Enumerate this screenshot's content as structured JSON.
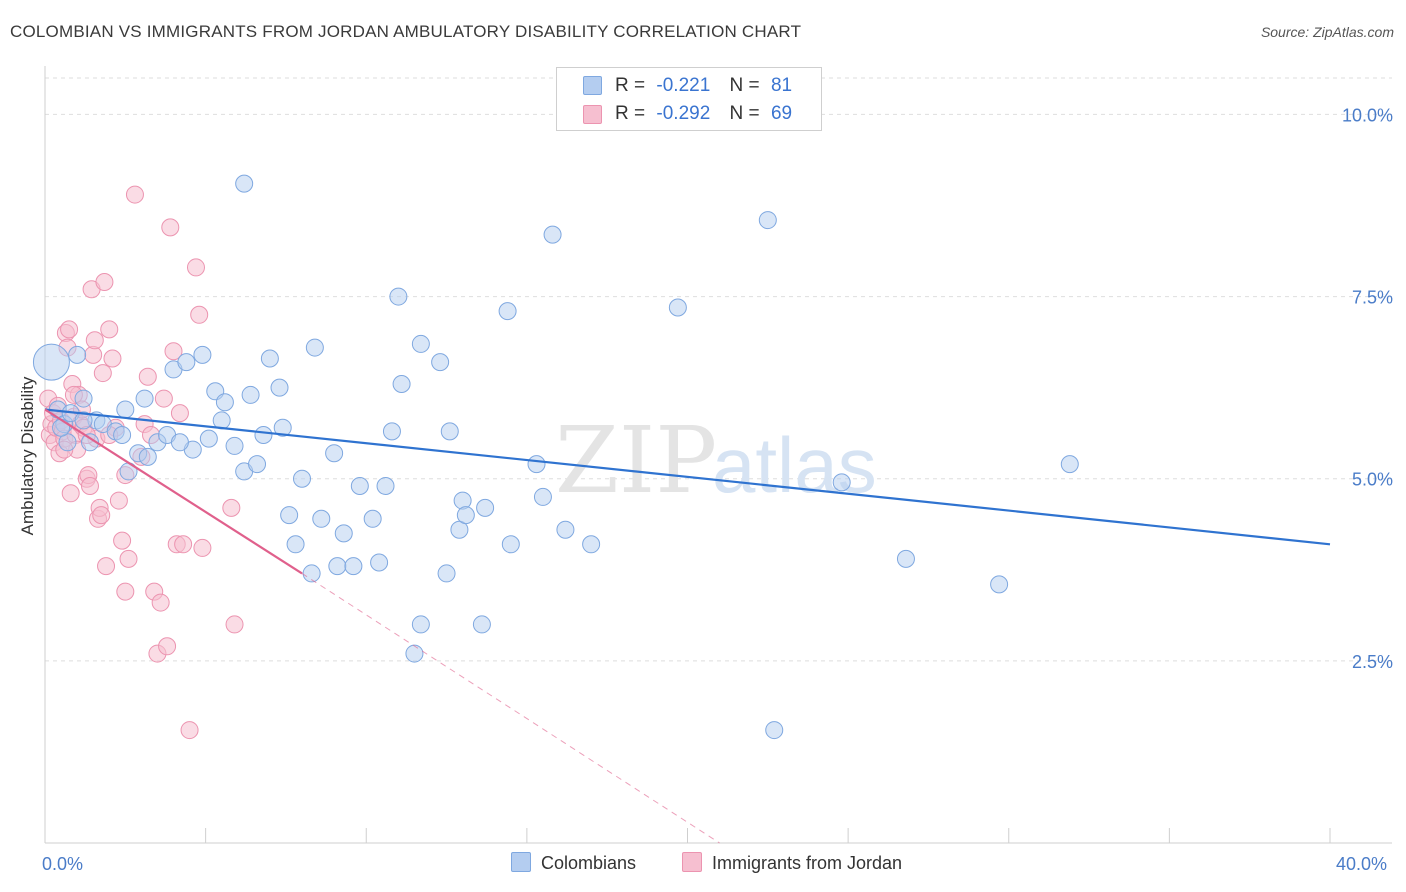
{
  "header": {
    "title": "COLOMBIAN VS IMMIGRANTS FROM JORDAN AMBULATORY DISABILITY CORRELATION CHART",
    "source": "Source: ZipAtlas.com"
  },
  "watermark": {
    "zip": "ZIP",
    "atlas": "atlas"
  },
  "legend": {
    "series1": {
      "r_label": "R =",
      "r_value": "-0.221",
      "n_label": "N =",
      "n_value": "81"
    },
    "series2": {
      "r_label": "R =",
      "r_value": "-0.292",
      "n_label": "N =",
      "n_value": "69"
    }
  },
  "bottom_legend": {
    "series1": "Colombians",
    "series2": "Immigrants from Jordan"
  },
  "colors": {
    "blue_fill": "#b4cdf0",
    "blue_stroke": "#7fa8e0",
    "blue_line": "#2f73d0",
    "pink_fill": "#f6bfd0",
    "pink_stroke": "#ec94b0",
    "pink_line": "#e0608c",
    "tick_text": "#4a7cc8",
    "grid": "#dedede"
  },
  "chart_data": {
    "type": "scatter",
    "title": "COLOMBIAN VS IMMIGRANTS FROM JORDAN AMBULATORY DISABILITY CORRELATION CHART",
    "xlabel": "",
    "ylabel": "Ambulatory Disability",
    "xlim": [
      0,
      40
    ],
    "ylim": [
      0,
      10.5
    ],
    "x_tick_labels": [
      "0.0%",
      "40.0%"
    ],
    "y_ticks": [
      2.5,
      5.0,
      7.5,
      10.0
    ],
    "y_tick_labels": [
      "2.5%",
      "5.0%",
      "7.5%",
      "10.0%"
    ],
    "grid": true,
    "series": [
      {
        "name": "Colombians",
        "r": -0.221,
        "n": 81,
        "trend": {
          "x": [
            0,
            40
          ],
          "y": [
            5.95,
            4.1
          ]
        },
        "points": [
          [
            0.2,
            6.6
          ],
          [
            0.4,
            5.95
          ],
          [
            0.6,
            5.75
          ],
          [
            0.8,
            5.9
          ],
          [
            1.0,
            6.7
          ],
          [
            1.2,
            6.1
          ],
          [
            0.7,
            5.5
          ],
          [
            1.6,
            5.8
          ],
          [
            1.8,
            5.75
          ],
          [
            2.2,
            5.65
          ],
          [
            2.5,
            5.95
          ],
          [
            2.6,
            5.1
          ],
          [
            2.9,
            5.35
          ],
          [
            3.1,
            6.1
          ],
          [
            3.2,
            5.3
          ],
          [
            3.5,
            5.5
          ],
          [
            3.8,
            5.6
          ],
          [
            4.0,
            6.5
          ],
          [
            4.4,
            6.6
          ],
          [
            4.6,
            5.4
          ],
          [
            4.9,
            6.7
          ],
          [
            5.1,
            5.55
          ],
          [
            5.3,
            6.2
          ],
          [
            5.5,
            5.8
          ],
          [
            5.6,
            6.05
          ],
          [
            5.9,
            5.45
          ],
          [
            6.2,
            9.05
          ],
          [
            6.2,
            5.1
          ],
          [
            6.4,
            6.15
          ],
          [
            6.6,
            5.2
          ],
          [
            6.8,
            5.6
          ],
          [
            7.0,
            6.65
          ],
          [
            7.3,
            6.25
          ],
          [
            7.4,
            5.7
          ],
          [
            7.6,
            4.5
          ],
          [
            7.8,
            4.1
          ],
          [
            8.0,
            5.0
          ],
          [
            8.3,
            3.7
          ],
          [
            8.4,
            6.8
          ],
          [
            8.6,
            4.45
          ],
          [
            9.0,
            5.35
          ],
          [
            9.1,
            3.8
          ],
          [
            9.3,
            4.25
          ],
          [
            9.6,
            3.8
          ],
          [
            9.8,
            4.9
          ],
          [
            10.2,
            4.45
          ],
          [
            10.4,
            3.85
          ],
          [
            10.6,
            4.9
          ],
          [
            10.8,
            5.65
          ],
          [
            11.0,
            7.5
          ],
          [
            11.1,
            6.3
          ],
          [
            11.7,
            6.85
          ],
          [
            11.7,
            3.0
          ],
          [
            11.5,
            2.6
          ],
          [
            12.3,
            6.6
          ],
          [
            12.5,
            3.7
          ],
          [
            12.6,
            5.65
          ],
          [
            12.9,
            4.3
          ],
          [
            13.0,
            4.7
          ],
          [
            13.1,
            4.5
          ],
          [
            13.6,
            3.0
          ],
          [
            13.7,
            4.6
          ],
          [
            14.4,
            7.3
          ],
          [
            14.5,
            4.1
          ],
          [
            15.3,
            5.2
          ],
          [
            15.5,
            4.75
          ],
          [
            15.8,
            8.35
          ],
          [
            16.2,
            4.3
          ],
          [
            17.0,
            4.1
          ],
          [
            19.7,
            7.35
          ],
          [
            22.5,
            8.55
          ],
          [
            22.7,
            1.55
          ],
          [
            24.8,
            4.95
          ],
          [
            26.8,
            3.9
          ],
          [
            29.7,
            3.55
          ],
          [
            31.9,
            5.2
          ],
          [
            1.2,
            5.8
          ],
          [
            2.4,
            5.6
          ],
          [
            0.5,
            5.7
          ],
          [
            1.4,
            5.5
          ],
          [
            4.2,
            5.5
          ]
        ]
      },
      {
        "name": "Immigrants from Jordan",
        "r": -0.292,
        "n": 69,
        "trend": {
          "x": [
            0,
            8.0
          ],
          "y": [
            5.95,
            3.7
          ]
        },
        "trend_extension": {
          "x": [
            8.0,
            21.0
          ],
          "y": [
            3.7,
            0.0
          ]
        },
        "points": [
          [
            0.1,
            6.1
          ],
          [
            0.15,
            5.6
          ],
          [
            0.2,
            5.75
          ],
          [
            0.25,
            5.9
          ],
          [
            0.3,
            5.5
          ],
          [
            0.35,
            5.7
          ],
          [
            0.4,
            6.0
          ],
          [
            0.45,
            5.35
          ],
          [
            0.5,
            5.8
          ],
          [
            0.55,
            5.65
          ],
          [
            0.6,
            5.55
          ],
          [
            0.65,
            7.0
          ],
          [
            0.7,
            6.8
          ],
          [
            0.75,
            7.05
          ],
          [
            0.8,
            4.8
          ],
          [
            0.85,
            6.3
          ],
          [
            0.9,
            5.85
          ],
          [
            0.95,
            5.6
          ],
          [
            1.0,
            5.4
          ],
          [
            1.05,
            6.15
          ],
          [
            1.1,
            5.75
          ],
          [
            1.15,
            5.95
          ],
          [
            1.2,
            5.7
          ],
          [
            1.3,
            5.0
          ],
          [
            1.35,
            5.05
          ],
          [
            1.4,
            4.9
          ],
          [
            1.45,
            7.6
          ],
          [
            1.5,
            6.7
          ],
          [
            1.55,
            6.9
          ],
          [
            1.6,
            5.55
          ],
          [
            1.65,
            4.45
          ],
          [
            1.7,
            4.6
          ],
          [
            1.75,
            4.5
          ],
          [
            1.8,
            6.45
          ],
          [
            1.85,
            7.7
          ],
          [
            1.9,
            3.8
          ],
          [
            2.0,
            7.05
          ],
          [
            2.1,
            6.65
          ],
          [
            2.2,
            5.7
          ],
          [
            2.3,
            4.7
          ],
          [
            2.4,
            4.15
          ],
          [
            2.5,
            5.05
          ],
          [
            2.5,
            3.45
          ],
          [
            2.6,
            3.9
          ],
          [
            2.8,
            8.9
          ],
          [
            3.1,
            5.75
          ],
          [
            3.2,
            6.4
          ],
          [
            3.3,
            5.6
          ],
          [
            3.4,
            3.45
          ],
          [
            3.5,
            2.6
          ],
          [
            3.6,
            3.3
          ],
          [
            3.7,
            6.1
          ],
          [
            3.8,
            2.7
          ],
          [
            3.9,
            8.45
          ],
          [
            4.0,
            6.75
          ],
          [
            4.1,
            4.1
          ],
          [
            4.2,
            5.9
          ],
          [
            4.3,
            4.1
          ],
          [
            4.5,
            1.55
          ],
          [
            4.7,
            7.9
          ],
          [
            4.8,
            7.25
          ],
          [
            4.9,
            4.05
          ],
          [
            5.8,
            4.6
          ],
          [
            5.9,
            3.0
          ],
          [
            1.3,
            5.6
          ],
          [
            0.9,
            6.15
          ],
          [
            2.0,
            5.6
          ],
          [
            3.0,
            5.3
          ],
          [
            0.6,
            5.4
          ]
        ]
      }
    ]
  }
}
